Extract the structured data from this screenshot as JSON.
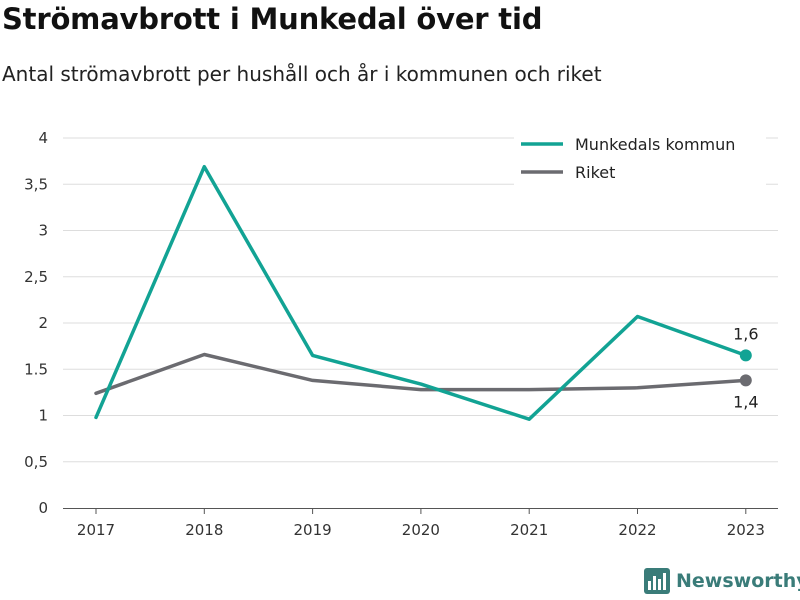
{
  "header": {
    "title": "Strömavbrott i Munkedal över tid",
    "subtitle": "Antal strömavbrott per hushåll och år i kommunen och riket"
  },
  "brand": {
    "name": "Newsworthy",
    "icon": "newsworthy-logo-icon"
  },
  "colors": {
    "munkedal": "#12a394",
    "riket": "#6b6b70",
    "grid": "#dddddd",
    "axis": "#555555"
  },
  "chart_data": {
    "type": "line",
    "x": [
      "2017",
      "2018",
      "2019",
      "2020",
      "2021",
      "2022",
      "2023"
    ],
    "ylim": [
      0,
      4
    ],
    "yticks": [
      "0",
      "0,5",
      "1",
      "1.5",
      "2",
      "2,5",
      "3",
      "3,5",
      "4"
    ],
    "grid": true,
    "legend_position": "top-right",
    "series": [
      {
        "name": "Munkedals kommun",
        "values": [
          0.98,
          3.69,
          1.65,
          1.34,
          0.96,
          2.07,
          1.65
        ],
        "end_label": "1,6"
      },
      {
        "name": "Riket",
        "values": [
          1.24,
          1.66,
          1.38,
          1.28,
          1.28,
          1.3,
          1.38
        ],
        "end_label": "1,4"
      }
    ]
  }
}
